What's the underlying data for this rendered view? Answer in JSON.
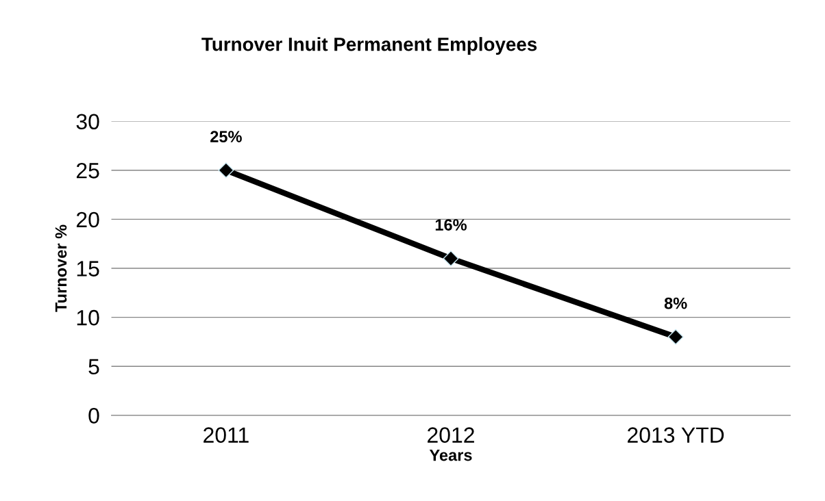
{
  "chart_data": {
    "type": "line",
    "title": "Turnover Inuit Permanent Employees",
    "xlabel": "Years",
    "ylabel": "Turnover %",
    "categories": [
      "2011",
      "2012",
      "2013 YTD"
    ],
    "series": [
      {
        "color": "#000000",
        "values": [
          25,
          16,
          8
        ],
        "value_labels": [
          "25%",
          "16%",
          "8%"
        ]
      }
    ],
    "ylim": [
      0,
      30
    ],
    "yticks": [
      0,
      5,
      10,
      15,
      20,
      25,
      30
    ],
    "grid": "y",
    "marker": "diamond",
    "line_style": "solid"
  }
}
